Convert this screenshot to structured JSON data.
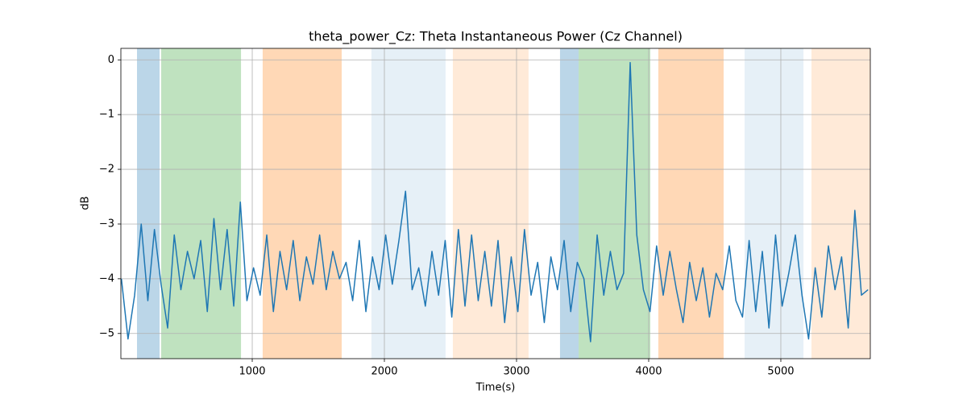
{
  "chart_data": {
    "type": "line",
    "title": "theta_power_Cz: Theta Instantaneous Power (Cz Channel)",
    "x_label": "Time(s)",
    "y_label": "dB",
    "color": "#1f77b4",
    "grid": true,
    "xlim": [
      6,
      5677
    ],
    "ylim": [
      -5.46,
      0.21
    ],
    "xticks": [
      1000,
      2000,
      3000,
      4000,
      5000
    ],
    "yticks": [
      {
        "value": 0,
        "label": "0"
      },
      {
        "value": -1,
        "label": "−1"
      },
      {
        "value": -2,
        "label": "−2"
      },
      {
        "value": -3,
        "label": "−3"
      },
      {
        "value": -4,
        "label": "−4"
      },
      {
        "value": -5,
        "label": "−5"
      }
    ],
    "spans": [
      {
        "start": 128,
        "end": 299,
        "color": "#1f77b4",
        "alpha": 0.3
      },
      {
        "start": 311,
        "end": 915,
        "color": "#2ca02c",
        "alpha": 0.3
      },
      {
        "start": 1079,
        "end": 1677,
        "color": "#ff7f0e",
        "alpha": 0.3
      },
      {
        "start": 1902,
        "end": 2463,
        "color": "#1f77b4",
        "alpha": 0.11
      },
      {
        "start": 2518,
        "end": 3091,
        "color": "#ff7f0e",
        "alpha": 0.16
      },
      {
        "start": 3329,
        "end": 3470,
        "color": "#1f77b4",
        "alpha": 0.3
      },
      {
        "start": 3470,
        "end": 4012,
        "color": "#2ca02c",
        "alpha": 0.3
      },
      {
        "start": 4073,
        "end": 4567,
        "color": "#ff7f0e",
        "alpha": 0.3
      },
      {
        "start": 4726,
        "end": 5171,
        "color": "#1f77b4",
        "alpha": 0.11
      },
      {
        "start": 5232,
        "end": 5677,
        "color": "#ff7f0e",
        "alpha": 0.16
      }
    ],
    "x": [
      10,
      60,
      110,
      160,
      210,
      260,
      310,
      360,
      410,
      460,
      510,
      560,
      610,
      660,
      710,
      760,
      810,
      860,
      910,
      960,
      1010,
      1060,
      1110,
      1160,
      1210,
      1260,
      1310,
      1360,
      1410,
      1460,
      1510,
      1560,
      1610,
      1660,
      1710,
      1760,
      1810,
      1860,
      1910,
      1960,
      2010,
      2060,
      2110,
      2160,
      2210,
      2260,
      2310,
      2360,
      2410,
      2460,
      2510,
      2560,
      2610,
      2660,
      2710,
      2760,
      2810,
      2860,
      2910,
      2960,
      3010,
      3060,
      3110,
      3160,
      3210,
      3260,
      3310,
      3360,
      3410,
      3460,
      3510,
      3560,
      3610,
      3660,
      3710,
      3760,
      3810,
      3860,
      3910,
      3960,
      4010,
      4060,
      4110,
      4160,
      4210,
      4260,
      4310,
      4360,
      4410,
      4460,
      4510,
      4560,
      4610,
      4660,
      4710,
      4760,
      4810,
      4860,
      4910,
      4960,
      5010,
      5060,
      5110,
      5160,
      5210,
      5260,
      5310,
      5360,
      5410,
      5460,
      5510,
      5560,
      5610,
      5660
    ],
    "values": [
      -4.0,
      -5.1,
      -4.3,
      -3.0,
      -4.4,
      -3.1,
      -4.1,
      -4.9,
      -3.2,
      -4.2,
      -3.5,
      -4.0,
      -3.3,
      -4.6,
      -2.9,
      -4.2,
      -3.1,
      -4.5,
      -2.6,
      -4.4,
      -3.8,
      -4.3,
      -3.2,
      -4.6,
      -3.5,
      -4.2,
      -3.3,
      -4.4,
      -3.6,
      -4.1,
      -3.2,
      -4.2,
      -3.5,
      -4.0,
      -3.7,
      -4.4,
      -3.3,
      -4.6,
      -3.6,
      -4.2,
      -3.2,
      -4.1,
      -3.3,
      -2.4,
      -4.2,
      -3.8,
      -4.5,
      -3.5,
      -4.3,
      -3.3,
      -4.7,
      -3.1,
      -4.5,
      -3.2,
      -4.4,
      -3.5,
      -4.5,
      -3.3,
      -4.8,
      -3.6,
      -4.6,
      -3.1,
      -4.3,
      -3.7,
      -4.8,
      -3.6,
      -4.2,
      -3.3,
      -4.6,
      -3.7,
      -4.0,
      -5.15,
      -3.2,
      -4.3,
      -3.5,
      -4.2,
      -3.9,
      -0.05,
      -3.2,
      -4.2,
      -4.6,
      -3.4,
      -4.3,
      -3.5,
      -4.2,
      -4.8,
      -3.7,
      -4.4,
      -3.8,
      -4.7,
      -3.9,
      -4.2,
      -3.4,
      -4.4,
      -4.7,
      -3.3,
      -4.6,
      -3.5,
      -4.9,
      -3.2,
      -4.5,
      -3.9,
      -3.2,
      -4.3,
      -5.1,
      -3.8,
      -4.7,
      -3.4,
      -4.2,
      -3.6,
      -4.9,
      -2.75,
      -4.3,
      -4.2
    ]
  }
}
